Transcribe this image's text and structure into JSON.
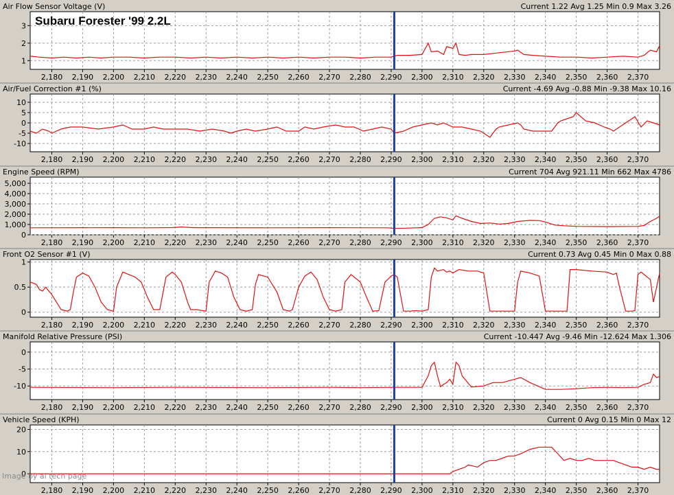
{
  "chart_title": "Subaru Forester '99 2.2L",
  "watermark": "Image by al tech page",
  "colors": {
    "trace": "#e01010",
    "cursor": "#1f3fa8",
    "grid": "#9a9a9a",
    "panel_bg": "#d4d0c8",
    "plot_bg": "#ffffff"
  },
  "x_ticks": [
    "2,180",
    "2,190",
    "2,200",
    "2,210",
    "2,220",
    "2,230",
    "2,240",
    "2,250",
    "2,260",
    "2,270",
    "2,280",
    "2,290",
    "2,300",
    "2,310",
    "2,320",
    "2,330",
    "2,340",
    "2,350",
    "2,360",
    "2,370"
  ],
  "chart_data": [
    {
      "type": "line",
      "title": "Air Flow Sensor Voltage (V)",
      "stats": "Current 1.22 Avg 1.25 Min 0.9 Max 3.26",
      "x_range": [
        2173,
        2377
      ],
      "cursor_x": 2291,
      "ylim": [
        0.5,
        3.8
      ],
      "yticks": [
        1,
        2,
        3
      ],
      "ytick_labels": [
        "1",
        "2",
        "3"
      ],
      "x": [
        2173,
        2176,
        2180,
        2184,
        2188,
        2192,
        2196,
        2200,
        2205,
        2210,
        2215,
        2220,
        2225,
        2230,
        2235,
        2240,
        2245,
        2250,
        2255,
        2260,
        2265,
        2270,
        2275,
        2280,
        2285,
        2290,
        2292,
        2296,
        2300,
        2302,
        2303,
        2305,
        2307,
        2308,
        2310,
        2311,
        2312,
        2314,
        2316,
        2320,
        2325,
        2330,
        2331,
        2333,
        2336,
        2340,
        2345,
        2350,
        2355,
        2360,
        2365,
        2370,
        2372,
        2374,
        2376,
        2377
      ],
      "y": [
        1.25,
        1.2,
        1.15,
        1.2,
        1.15,
        1.2,
        1.15,
        1.2,
        1.2,
        1.15,
        1.2,
        1.2,
        1.15,
        1.2,
        1.15,
        1.2,
        1.15,
        1.2,
        1.15,
        1.2,
        1.15,
        1.2,
        1.2,
        1.15,
        1.2,
        1.2,
        1.3,
        1.3,
        1.35,
        2.0,
        1.5,
        1.55,
        1.35,
        1.8,
        1.7,
        2.0,
        1.35,
        1.3,
        1.35,
        1.35,
        1.45,
        1.55,
        1.6,
        1.35,
        1.3,
        1.25,
        1.2,
        1.2,
        1.15,
        1.2,
        1.25,
        1.2,
        1.3,
        1.6,
        1.5,
        1.85
      ]
    },
    {
      "type": "line",
      "title": "Air/Fuel Correction #1 (%)",
      "stats": "Current -4.69 Avg -0.88 Min -9.38 Max 10.16",
      "x_range": [
        2173,
        2377
      ],
      "cursor_x": 2291,
      "ylim": [
        -14,
        14
      ],
      "yticks": [
        -10,
        -5,
        0,
        5,
        10
      ],
      "ytick_labels": [
        "-10",
        "-5",
        "0",
        "5",
        "10"
      ],
      "x": [
        2173,
        2175,
        2177,
        2179,
        2180,
        2183,
        2186,
        2190,
        2195,
        2200,
        2203,
        2206,
        2210,
        2213,
        2216,
        2220,
        2224,
        2228,
        2232,
        2236,
        2238,
        2240,
        2243,
        2246,
        2250,
        2253,
        2256,
        2260,
        2262,
        2265,
        2268,
        2272,
        2275,
        2278,
        2281,
        2284,
        2287,
        2290,
        2291,
        2294,
        2297,
        2300,
        2303,
        2305,
        2307,
        2310,
        2313,
        2316,
        2319,
        2321,
        2322,
        2324,
        2325,
        2328,
        2331,
        2332,
        2333,
        2336,
        2340,
        2342,
        2344,
        2345,
        2347,
        2349,
        2350,
        2353,
        2356,
        2359,
        2361,
        2362,
        2364,
        2366,
        2368,
        2369,
        2371,
        2373,
        2375,
        2377
      ],
      "y": [
        -4,
        -5,
        -3,
        -4,
        -5,
        -3,
        -2,
        -2,
        -3,
        -2,
        -1,
        -3,
        -3,
        -2,
        -3,
        -3,
        -3,
        -4,
        -3,
        -4,
        -5,
        -4,
        -3,
        -4,
        -3,
        -2,
        -4,
        -4,
        -2,
        -3,
        -2,
        -1,
        -2,
        -2,
        -4,
        -3,
        -2,
        -3,
        -5,
        -4,
        -2,
        -1,
        0,
        -1,
        0,
        -2,
        -2,
        -3,
        -4,
        -6,
        -7,
        -3,
        -2,
        -1,
        0,
        -1,
        -3,
        -4,
        -4,
        -4,
        0,
        1,
        2,
        3,
        5,
        1,
        0,
        -2,
        -3,
        -4,
        -2,
        0,
        2,
        3,
        -2,
        1,
        0,
        -1
      ]
    },
    {
      "type": "line",
      "title": "Engine Speed (RPM)",
      "stats": "Current 704 Avg 921.11 Min 662 Max 4786",
      "x_range": [
        2173,
        2377
      ],
      "cursor_x": 2291,
      "ylim": [
        0,
        5600
      ],
      "yticks": [
        0,
        1000,
        2000,
        3000,
        4000,
        5000
      ],
      "ytick_labels": [
        "0",
        "1,000",
        "2,000",
        "3,000",
        "4,000",
        "5,000"
      ],
      "x": [
        2173,
        2200,
        2210,
        2219,
        2222,
        2226,
        2230,
        2250,
        2270,
        2289,
        2291,
        2295,
        2300,
        2302,
        2304,
        2306,
        2308,
        2310,
        2311,
        2313,
        2316,
        2319,
        2322,
        2325,
        2328,
        2331,
        2335,
        2338,
        2340,
        2343,
        2346,
        2350,
        2360,
        2370,
        2372,
        2374,
        2376,
        2377
      ],
      "y": [
        680,
        690,
        680,
        700,
        760,
        690,
        690,
        680,
        690,
        680,
        620,
        650,
        700,
        1000,
        1600,
        1750,
        1650,
        1450,
        1850,
        1600,
        1300,
        1100,
        1150,
        1050,
        1100,
        1300,
        1400,
        1380,
        1250,
        950,
        880,
        820,
        800,
        820,
        900,
        1300,
        1600,
        1800
      ]
    },
    {
      "type": "line",
      "title": "Front O2 Sensor #1 (V)",
      "stats": "Current 0.73 Avg 0.45 Min 0 Max 0.88",
      "x_range": [
        2173,
        2377
      ],
      "cursor_x": 2291,
      "ylim": [
        -0.1,
        1.05
      ],
      "yticks": [
        0,
        0.5,
        1
      ],
      "ytick_labels": [
        "0",
        "0.5",
        "1"
      ],
      "x": [
        2173,
        2174,
        2175,
        2176,
        2177,
        2178,
        2180,
        2182,
        2183,
        2185,
        2186,
        2187,
        2188,
        2190,
        2192,
        2194,
        2196,
        2198,
        2200,
        2201,
        2203,
        2205,
        2207,
        2209,
        2211,
        2213,
        2215,
        2217,
        2219,
        2220,
        2222,
        2224,
        2225,
        2227,
        2230,
        2231,
        2233,
        2235,
        2237,
        2239,
        2241,
        2243,
        2245,
        2246,
        2247,
        2250,
        2253,
        2255,
        2257,
        2258,
        2260,
        2262,
        2264,
        2266,
        2268,
        2270,
        2272,
        2274,
        2275,
        2277,
        2280,
        2282,
        2284,
        2286,
        2288,
        2290,
        2291,
        2292,
        2294,
        2296,
        2298,
        2300,
        2302,
        2303,
        2304,
        2305,
        2307,
        2308,
        2309,
        2310,
        2312,
        2315,
        2318,
        2320,
        2322,
        2325,
        2328,
        2330,
        2331,
        2332,
        2335,
        2338,
        2340,
        2342,
        2345,
        2347,
        2348,
        2350,
        2355,
        2360,
        2362,
        2363,
        2364,
        2366,
        2368,
        2369,
        2370,
        2371,
        2372,
        2374,
        2375,
        2377
      ],
      "y": [
        0.6,
        0.58,
        0.55,
        0.45,
        0.42,
        0.5,
        0.35,
        0.15,
        0.05,
        0.02,
        0.05,
        0.4,
        0.7,
        0.78,
        0.72,
        0.5,
        0.2,
        0.05,
        0.02,
        0.5,
        0.8,
        0.75,
        0.7,
        0.6,
        0.3,
        0.05,
        0.05,
        0.7,
        0.8,
        0.75,
        0.6,
        0.2,
        0.05,
        0.05,
        0.02,
        0.6,
        0.82,
        0.78,
        0.7,
        0.3,
        0.05,
        0.02,
        0.05,
        0.55,
        0.75,
        0.7,
        0.4,
        0.05,
        0.02,
        0.05,
        0.5,
        0.72,
        0.8,
        0.65,
        0.3,
        0.05,
        0.02,
        0.05,
        0.6,
        0.75,
        0.6,
        0.3,
        0.02,
        0.03,
        0.6,
        0.72,
        0.75,
        0.7,
        0.02,
        0.02,
        0.03,
        0.02,
        0.05,
        0.7,
        0.88,
        0.82,
        0.85,
        0.8,
        0.82,
        0.78,
        0.85,
        0.82,
        0.82,
        0.78,
        0.02,
        0.02,
        0.02,
        0.02,
        0.6,
        0.82,
        0.78,
        0.72,
        0.02,
        0.02,
        0.02,
        0.02,
        0.85,
        0.85,
        0.82,
        0.8,
        0.75,
        0.78,
        0.5,
        0.02,
        0.02,
        0.03,
        0.75,
        0.8,
        0.75,
        0.65,
        0.2,
        0.78
      ]
    },
    {
      "type": "line",
      "title": "Manifold Relative Pressure (PSI)",
      "stats": "Current -10.447 Avg -9.46 Min -12.624 Max 1.306",
      "x_range": [
        2173,
        2377
      ],
      "cursor_x": 2291,
      "ylim": [
        -14,
        3
      ],
      "yticks": [
        -10,
        -5,
        0
      ],
      "ytick_labels": [
        "-10",
        "-5",
        "0"
      ],
      "x": [
        2173,
        2200,
        2220,
        2250,
        2270,
        2280,
        2291,
        2300,
        2302,
        2303,
        2304,
        2305,
        2306,
        2307,
        2308,
        2309,
        2310,
        2311,
        2312,
        2313,
        2316,
        2320,
        2323,
        2326,
        2330,
        2332,
        2335,
        2338,
        2340,
        2345,
        2350,
        2355,
        2360,
        2365,
        2370,
        2372,
        2374,
        2375,
        2376,
        2377
      ],
      "y": [
        -10.4,
        -10.5,
        -10.4,
        -10.5,
        -10.4,
        -10.5,
        -10.4,
        -10.4,
        -7,
        -4,
        -3,
        -7,
        -10.2,
        -9.5,
        -9,
        -8,
        -9.5,
        -3,
        -4,
        -7,
        -10.3,
        -10,
        -9,
        -9,
        -8,
        -7.5,
        -9,
        -10.2,
        -11,
        -11,
        -10.8,
        -10.5,
        -10.4,
        -10.5,
        -10.4,
        -9.5,
        -9,
        -6.5,
        -7.5,
        -7.2
      ]
    },
    {
      "type": "line",
      "title": "Vehicle Speed (KPH)",
      "stats": "Current 0 Avg 0.15 Min 0 Max 12",
      "x_range": [
        2173,
        2377
      ],
      "cursor_x": 2291,
      "ylim": [
        -4,
        22
      ],
      "yticks": [
        0,
        10,
        20
      ],
      "ytick_labels": [
        "0",
        "10",
        "20"
      ],
      "x": [
        2173,
        2250,
        2291,
        2309,
        2310,
        2312,
        2314,
        2315,
        2318,
        2320,
        2322,
        2324,
        2326,
        2328,
        2330,
        2332,
        2335,
        2338,
        2340,
        2342,
        2344,
        2346,
        2348,
        2350,
        2352,
        2354,
        2356,
        2358,
        2360,
        2362,
        2364,
        2366,
        2368,
        2370,
        2372,
        2374,
        2376,
        2377
      ],
      "y": [
        0,
        0,
        0,
        0,
        1,
        2,
        3,
        4,
        3,
        5,
        6,
        6,
        7,
        8,
        8,
        9,
        11,
        12,
        12,
        12,
        9,
        6,
        7,
        6,
        6,
        7,
        6,
        6,
        6,
        6,
        5,
        4,
        3,
        3,
        2,
        3,
        2,
        2
      ]
    }
  ]
}
